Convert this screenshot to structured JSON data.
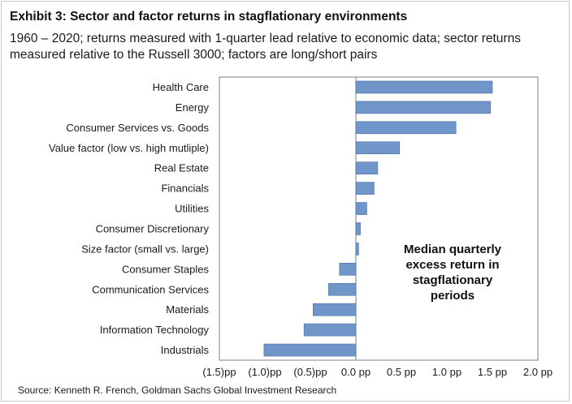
{
  "header": {
    "title": "Exhibit 3: Sector and factor returns in stagflationary environments",
    "subtitle": "1960 – 2020; returns measured with 1-quarter lead relative to economic data; sector returns measured relative to the Russell 3000; factors are long/short pairs"
  },
  "chart_data": {
    "type": "bar",
    "orientation": "horizontal",
    "categories": [
      "Health Care",
      "Energy",
      "Consumer Services vs. Goods",
      "Value factor (low vs. high mutliple)",
      "Real Estate",
      "Financials",
      "Utilities",
      "Consumer Discretionary",
      "Size factor (small vs. large)",
      "Consumer Staples",
      "Communication Services",
      "Materials",
      "Information Technology",
      "Industrials"
    ],
    "values": [
      1.5,
      1.48,
      1.1,
      0.48,
      0.24,
      0.2,
      0.12,
      0.05,
      0.03,
      -0.18,
      -0.3,
      -0.47,
      -0.57,
      -1.01
    ],
    "xlim": [
      -1.5,
      2.0
    ],
    "xticks": [
      -1.5,
      -1.0,
      -0.5,
      0.0,
      0.5,
      1.0,
      1.5,
      2.0
    ],
    "xtick_labels": [
      "(1.5)pp",
      "(1.0)pp",
      "(0.5)pp",
      "0.0 pp",
      "0.5 pp",
      "1.0 pp",
      "1.5 pp",
      "2.0 pp"
    ],
    "annotation": "Median quarterly excess return in stagflationary periods",
    "annotation_lines": [
      "Median quarterly",
      "excess return in",
      "stagflationary",
      "periods"
    ],
    "bar_color": "#7095C8",
    "bar_edge_color": "#4a6fa5",
    "grid": false
  },
  "footer": {
    "source": "Source: Kenneth R. French, Goldman Sachs Global Investment Research"
  }
}
